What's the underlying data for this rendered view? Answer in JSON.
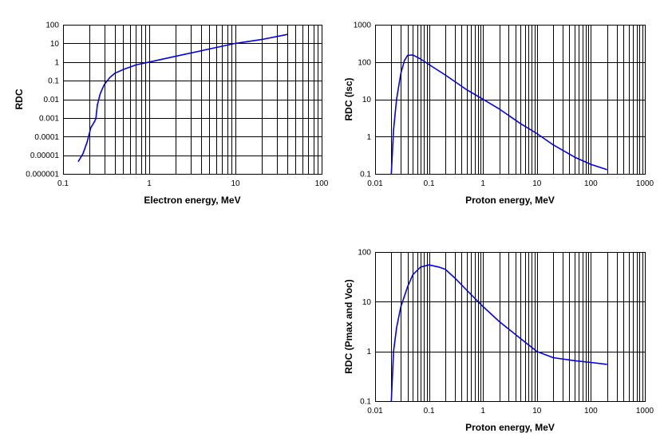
{
  "colors": {
    "series": "#0000ee",
    "grid": "#000000",
    "background": "#ffffff"
  },
  "chart_data": [
    {
      "type": "line",
      "title": "",
      "xlabel": "Electron energy, MeV",
      "ylabel": "RDC",
      "xscale": "log",
      "yscale": "log",
      "xlim": [
        0.1,
        100
      ],
      "ylim": [
        1e-06,
        100
      ],
      "grid": true,
      "legend": "none",
      "xticks": [
        "0.1",
        "1",
        "10",
        "100"
      ],
      "yticks": [
        "0.000001",
        "0.00001",
        "0.0001",
        "0.001",
        "0.01",
        "0.1",
        "1",
        "10",
        "100"
      ],
      "series": [
        {
          "x": [
            0.15,
            0.17,
            0.19,
            0.21,
            0.23,
            0.24,
            0.25,
            0.27,
            0.3,
            0.35,
            0.4,
            0.5,
            0.7,
            1.0,
            2.0,
            5.0,
            10,
            20,
            40
          ],
          "y": [
            4.5e-06,
            1.2e-05,
            5e-05,
            0.0003,
            0.0006,
            0.0009,
            0.005,
            0.02,
            0.06,
            0.15,
            0.25,
            0.4,
            0.7,
            1.0,
            2.0,
            5.0,
            10,
            16,
            30
          ]
        }
      ]
    },
    {
      "type": "line",
      "title": "",
      "xlabel": "Proton energy, MeV",
      "ylabel": "RDC (Isc)",
      "xscale": "log",
      "yscale": "log",
      "xlim": [
        0.01,
        1000
      ],
      "ylim": [
        0.1,
        1000
      ],
      "grid": true,
      "legend": "none",
      "xticks": [
        "0.01",
        "0.1",
        "1",
        "10",
        "100",
        "1000"
      ],
      "yticks": [
        "0.1",
        "1",
        "10",
        "100",
        "1000"
      ],
      "series": [
        {
          "x": [
            0.02,
            0.022,
            0.025,
            0.03,
            0.035,
            0.04,
            0.05,
            0.07,
            0.1,
            0.2,
            0.5,
            1,
            2,
            5,
            10,
            20,
            50,
            100,
            200
          ],
          "y": [
            0.1,
            1.5,
            10,
            50,
            110,
            150,
            155,
            120,
            85,
            45,
            18,
            10,
            5.5,
            2.2,
            1.2,
            0.6,
            0.28,
            0.18,
            0.13
          ]
        }
      ]
    },
    {
      "type": "line",
      "title": "",
      "xlabel": "Proton energy, MeV",
      "ylabel": "RDC (Pmax and Voc)",
      "xscale": "log",
      "yscale": "log",
      "xlim": [
        0.01,
        1000
      ],
      "ylim": [
        0.1,
        100
      ],
      "grid": true,
      "legend": "none",
      "xticks": [
        "0.01",
        "0.1",
        "1",
        "10",
        "100",
        "1000"
      ],
      "yticks": [
        "0.1",
        "1",
        "10",
        "100"
      ],
      "series": [
        {
          "x": [
            0.02,
            0.022,
            0.025,
            0.03,
            0.04,
            0.05,
            0.07,
            0.1,
            0.15,
            0.2,
            0.3,
            0.5,
            1,
            2,
            5,
            10,
            20,
            50,
            100,
            200
          ],
          "y": [
            0.1,
            1,
            3,
            8,
            20,
            35,
            50,
            55,
            50,
            45,
            30,
            17,
            8,
            4,
            1.8,
            1.0,
            0.75,
            0.65,
            0.6,
            0.55
          ]
        }
      ]
    }
  ]
}
